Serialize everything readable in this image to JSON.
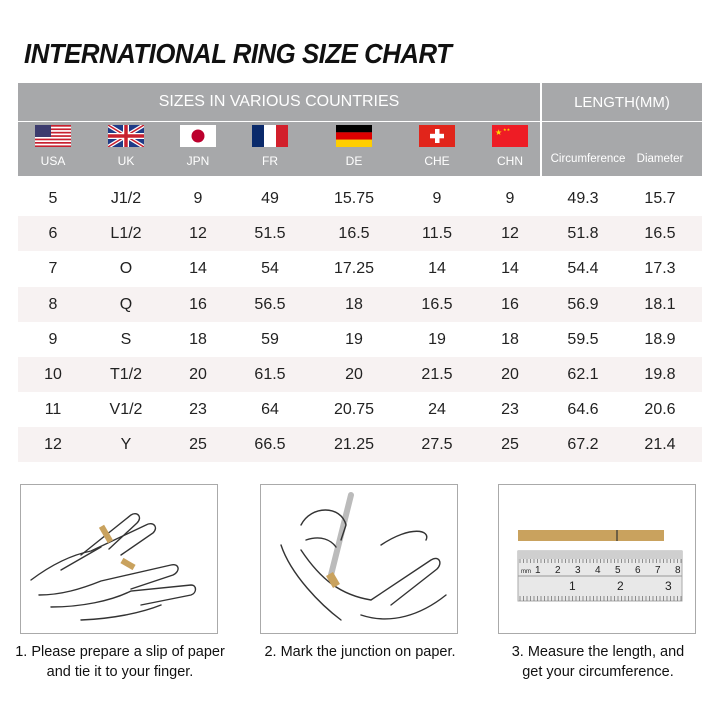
{
  "title": "INTERNATIONAL RING SIZE CHART",
  "header": {
    "sizes_label": "SIZES IN VARIOUS COUNTRIES",
    "length_label": "LENGTH(MM)",
    "countries": [
      {
        "code": "USA",
        "flag": "us-flag"
      },
      {
        "code": "UK",
        "flag": "uk-flag"
      },
      {
        "code": "JPN",
        "flag": "japan-flag"
      },
      {
        "code": "FR",
        "flag": "france-flag"
      },
      {
        "code": "DE",
        "flag": "germany-flag"
      },
      {
        "code": "CHE",
        "flag": "switzerland-flag"
      },
      {
        "code": "CHN",
        "flag": "china-flag"
      }
    ],
    "circumference": "Circumference",
    "diameter": "Diameter"
  },
  "rows": [
    [
      "5",
      "J1/2",
      "9",
      "49",
      "15.75",
      "9",
      "9",
      "49.3",
      "15.7"
    ],
    [
      "6",
      "L1/2",
      "12",
      "51.5",
      "16.5",
      "11.5",
      "12",
      "51.8",
      "16.5"
    ],
    [
      "7",
      "O",
      "14",
      "54",
      "17.25",
      "14",
      "14",
      "54.4",
      "17.3"
    ],
    [
      "8",
      "Q",
      "16",
      "56.5",
      "18",
      "16.5",
      "16",
      "56.9",
      "18.1"
    ],
    [
      "9",
      "S",
      "18",
      "59",
      "19",
      "19",
      "18",
      "59.5",
      "18.9"
    ],
    [
      "10",
      "T1/2",
      "20",
      "61.5",
      "20",
      "21.5",
      "20",
      "62.1",
      "19.8"
    ],
    [
      "11",
      "V1/2",
      "23",
      "64",
      "20.75",
      "24",
      "23",
      "64.6",
      "20.6"
    ],
    [
      "12",
      "Y",
      "25",
      "66.5",
      "21.25",
      "27.5",
      "25",
      "67.2",
      "21.4"
    ]
  ],
  "steps": [
    {
      "line1": "1. Please prepare a slip of paper",
      "line2": "and tie it to your finger."
    },
    {
      "line1": "2. Mark the junction on paper.",
      "line2": ""
    },
    {
      "line1": "3. Measure the length, and",
      "line2": "get your circumference."
    }
  ],
  "ruler": {
    "top_ticks": [
      "1",
      "2",
      "3",
      "4",
      "5",
      "6",
      "7",
      "8"
    ],
    "bottom_ticks": [
      "1",
      "2",
      "3"
    ],
    "unit": "mm"
  },
  "colors": {
    "header": "#a7a8aa",
    "row_alt": "#f7f2f2",
    "paper_strip": "#c9a25e"
  }
}
